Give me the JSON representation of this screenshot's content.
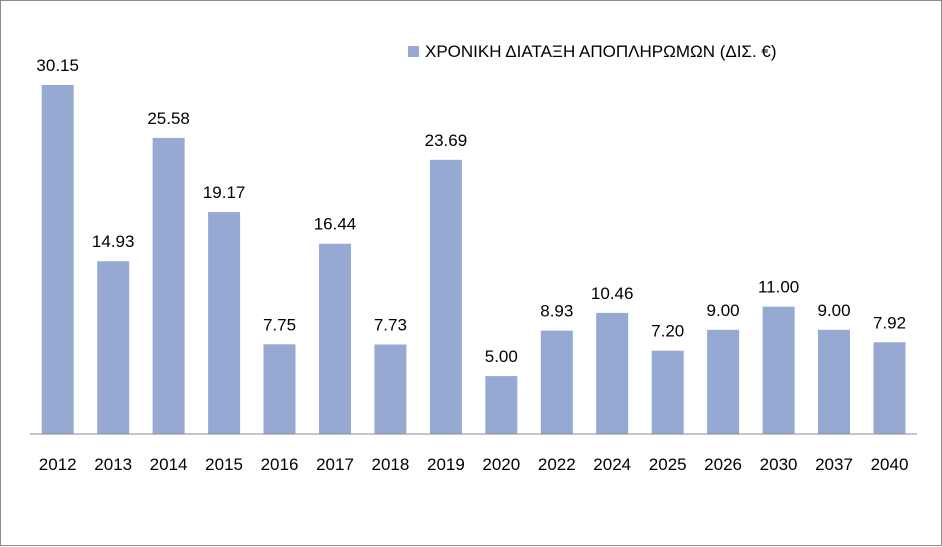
{
  "chart_data": {
    "type": "bar",
    "title": "",
    "xlabel": "",
    "ylabel": "",
    "categories": [
      "2012",
      "2013",
      "2014",
      "2015",
      "2016",
      "2017",
      "2018",
      "2019",
      "2020",
      "2022",
      "2024",
      "2025",
      "2026",
      "2030",
      "2037",
      "2040"
    ],
    "series": [
      {
        "name": "ΧΡΟΝΙΚΗ ΔΙΑΤΑΞΗ ΑΠΟΠΛΗΡΩΜΩΝ (ΔΙΣ. €)",
        "values": [
          30.15,
          14.93,
          25.58,
          19.17,
          7.75,
          16.44,
          7.73,
          23.69,
          5.0,
          8.93,
          10.46,
          7.2,
          9.0,
          11.0,
          9.0,
          7.92
        ],
        "labels": [
          "30.15",
          "14.93",
          "25.58",
          "19.17",
          "7.75",
          "16.44",
          "7.73",
          "23.69",
          "5.00",
          "8.93",
          "10.46",
          "7.20",
          "9.00",
          "11.00",
          "9.00",
          "7.92"
        ],
        "color": "#95a9d3"
      }
    ],
    "ylim": [
      0,
      30.15
    ],
    "grid": false,
    "legend_position": "top-right",
    "axis_color": "#8c8c8c"
  }
}
